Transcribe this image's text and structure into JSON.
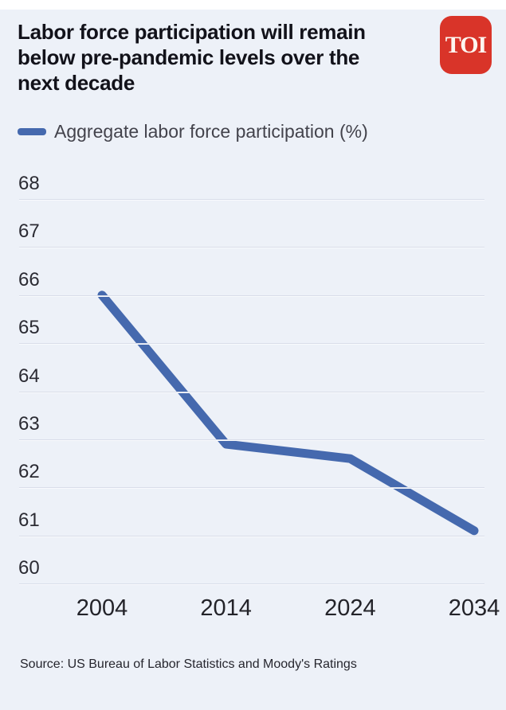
{
  "header": {
    "title": "Labor force participation will remain below pre-pandemic levels over the next decade",
    "title_lines": [
      "Labor force participation will remain",
      "below pre-pandemic levels over the",
      "next decade"
    ],
    "logo_text": "TOI"
  },
  "legend": {
    "label": "Aggregate labor force participation (%)"
  },
  "footer": {
    "source": "Source: US Bureau of Labor Statistics and Moody's Ratings"
  },
  "colors": {
    "background": "#edf1f8",
    "accent_blue": "#4569ae",
    "logo_red": "#d93429",
    "gridline": "#d9dde9"
  },
  "chart_data": {
    "type": "line",
    "categories": [
      "2004",
      "2014",
      "2024",
      "2034"
    ],
    "series": [
      {
        "name": "Aggregate labor force participation (%)",
        "values": [
          66.0,
          62.9,
          62.6,
          61.1
        ]
      }
    ],
    "xlabel": "",
    "ylabel": "",
    "ylim": [
      60,
      68
    ],
    "yticks": [
      68,
      67,
      66,
      65,
      64,
      63,
      62,
      61,
      60
    ],
    "grid": "horizontal-only",
    "legend_position": "top-left",
    "line_color": "#4569ae"
  }
}
